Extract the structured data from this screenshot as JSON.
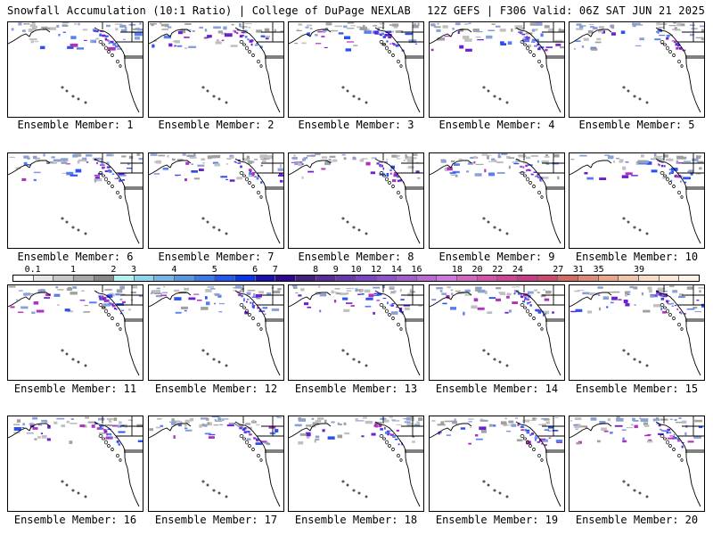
{
  "header": {
    "left": "Snowfall Accumulation (10:1 Ratio) | College of DuPage NEXLAB",
    "right": "12Z GEFS | F306 Valid: 06Z SAT JUN 21 2025"
  },
  "members": [
    {
      "label": "Ensemble Member: 1"
    },
    {
      "label": "Ensemble Member: 2"
    },
    {
      "label": "Ensemble Member: 3"
    },
    {
      "label": "Ensemble Member: 4"
    },
    {
      "label": "Ensemble Member: 5"
    },
    {
      "label": "Ensemble Member: 6"
    },
    {
      "label": "Ensemble Member: 7"
    },
    {
      "label": "Ensemble Member: 8"
    },
    {
      "label": "Ensemble Member: 9"
    },
    {
      "label": "Ensemble Member: 10"
    },
    {
      "label": "Ensemble Member: 11"
    },
    {
      "label": "Ensemble Member: 12"
    },
    {
      "label": "Ensemble Member: 13"
    },
    {
      "label": "Ensemble Member: 14"
    },
    {
      "label": "Ensemble Member: 15"
    },
    {
      "label": "Ensemble Member: 16"
    },
    {
      "label": "Ensemble Member: 17"
    },
    {
      "label": "Ensemble Member: 18"
    },
    {
      "label": "Ensemble Member: 19"
    },
    {
      "label": "Ensemble Member: 20"
    }
  ],
  "legend": {
    "labels": [
      "0.1",
      "1",
      "2",
      "3",
      "4",
      "5",
      "6",
      "7",
      "8",
      "9",
      "10",
      "12",
      "14",
      "16",
      "18",
      "20",
      "22",
      "24",
      "27",
      "31",
      "35",
      "39"
    ],
    "colors": [
      "#ffffff",
      "#e4e4e4",
      "#c6c6c6",
      "#a8a8a8",
      "#888888",
      "#b4f0f0",
      "#8ed4ec",
      "#78b4e6",
      "#5a96e0",
      "#3c78e6",
      "#2058f0",
      "#0a34e8",
      "#1a10b0",
      "#300890",
      "#44207a",
      "#582c96",
      "#6a38ac",
      "#7c44be",
      "#9050c8",
      "#a45ccc",
      "#b86ad2",
      "#cc78da",
      "#d264c2",
      "#d452aa",
      "#d04296",
      "#c63c86",
      "#cc4a70",
      "#d46a64",
      "#de8a72",
      "#e8a888",
      "#f0c4a6",
      "#f8dcc4",
      "#fbe8d6",
      "#fdf2e8"
    ]
  }
}
